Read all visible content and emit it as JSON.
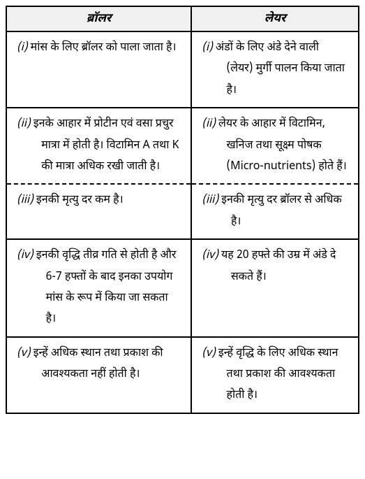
{
  "header": {
    "col1": "ब्रॉलर",
    "col2": "लेयर"
  },
  "rows": [
    {
      "left_num": "(i)",
      "left_text": "मांस के लिए ब्रॉलर को पाला जाता है।",
      "right_num": "(i)",
      "right_text": "अंडों के लिए अंडे देने वाली (लेयर) मुर्गी पालन किया जाता है।"
    },
    {
      "left_num": "(ii)",
      "left_text": "इनके आहार में प्रोटीन एवं वसा प्रचुर मात्रा में होती है। विटामिन A तथा K की मात्रा अधिक रखी जाती है।",
      "right_num": "(ii)",
      "right_text": "लेयर के आहार में विटामिन, खनिज तथा सूक्ष्म पोषक (Micro-nutrients) होते हैं।"
    },
    {
      "left_num": "(iii)",
      "left_text": "इनकी मृत्यु दर कम है।",
      "right_num": "(iii)",
      "right_text": "इनकी मृत्यु दर ब्रॉलर से अधिक है।"
    },
    {
      "left_num": "(iv)",
      "left_text": "इनकी वृद्धि तीव्र गति से होती है और 6-7 हफ्तों के बाद इनका उपयोग मांस के रूप में किया जा सकता है।",
      "right_num": "(iv)",
      "right_text": "यह 20 हफ्ते की उम्र में अंडे दे सकते हैं।"
    },
    {
      "left_num": "(v)",
      "left_text": "इन्हें अधिक स्थान तथा प्रकाश की आवश्यकता नहीं होती है।",
      "right_num": "(v)",
      "right_text": "इन्हें वृद्धि के लिए अधिक स्थान तथा प्रकाश की आवश्यकता होती है।"
    }
  ],
  "style": {
    "font_size_header": 17,
    "font_size_body": 16,
    "header_bg": "#f0f0f0",
    "border_color": "#000000",
    "line_height": 1.9
  }
}
